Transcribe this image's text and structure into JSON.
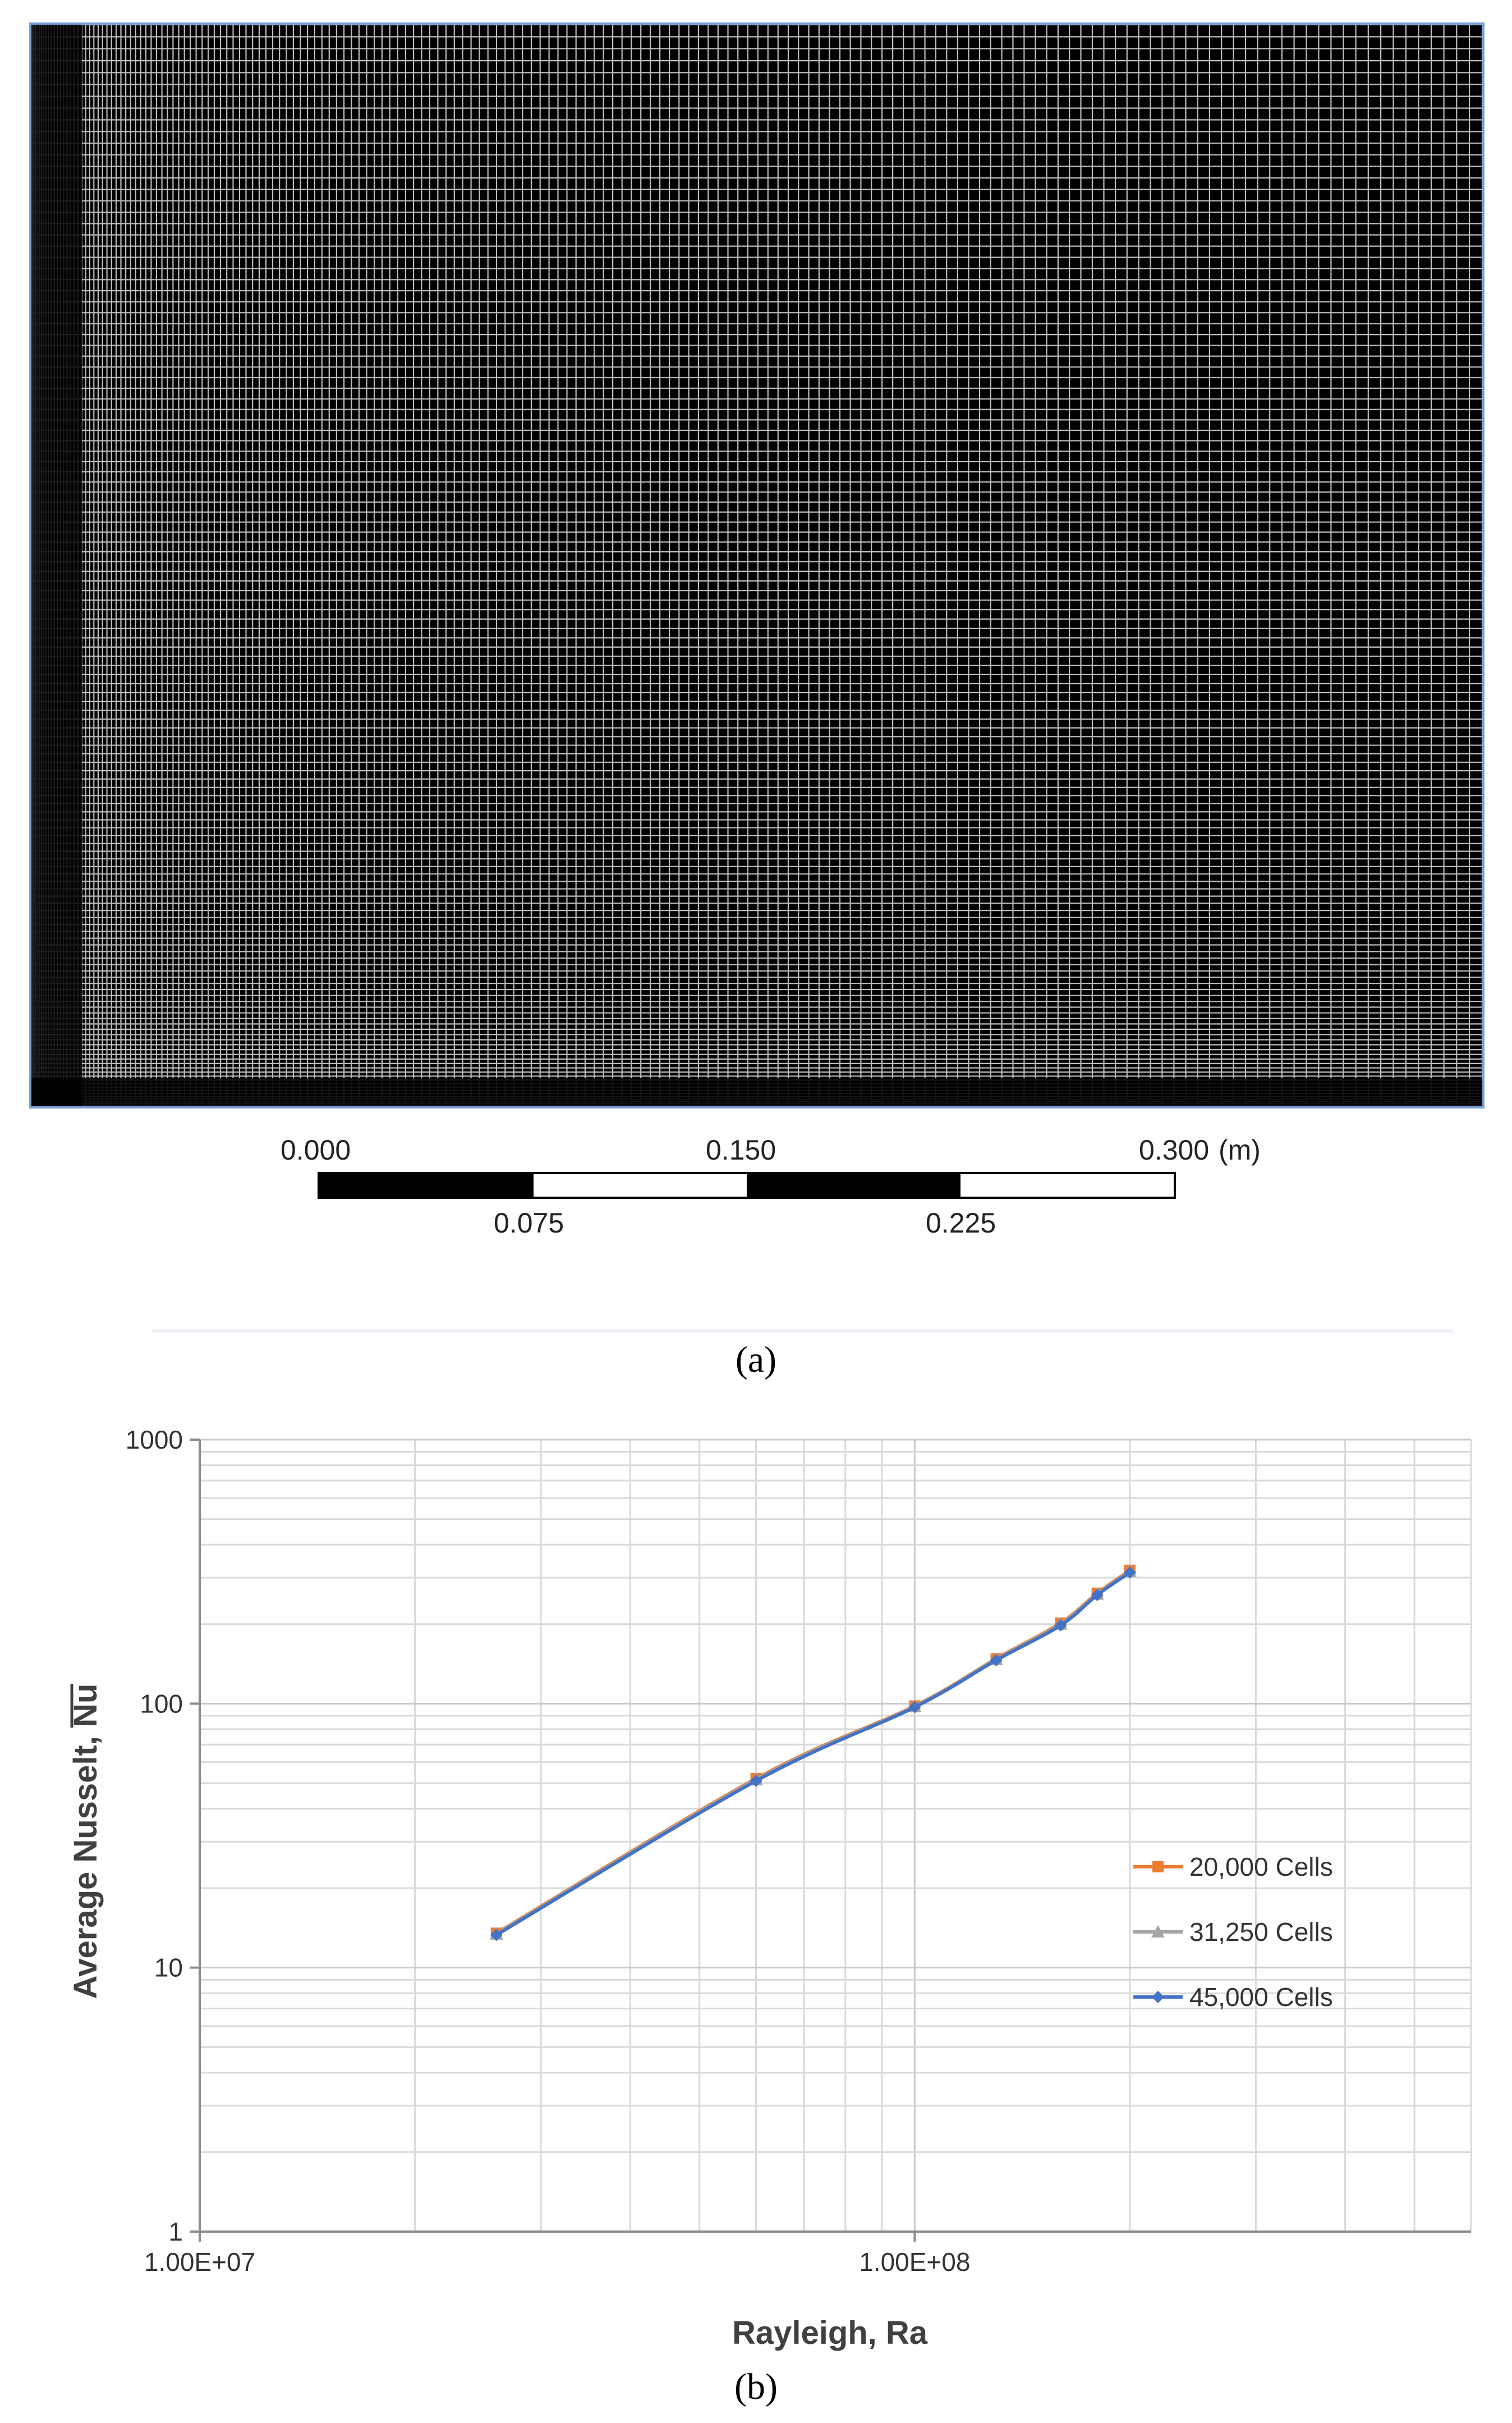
{
  "panel_a": {
    "scale_labels_top": [
      "0.000",
      "0.150",
      "0.300"
    ],
    "scale_unit": "(m)",
    "scale_labels_bottom": [
      "0.075",
      "0.225"
    ],
    "caption": "(a)",
    "frame_color": "#7aa0d8"
  },
  "panel_b": {
    "caption": "(b)"
  },
  "chart_data": {
    "type": "line",
    "xlabel": "Rayleigh, Ra",
    "ylabel": "Average Nusselt, Nu",
    "x_scale": "log",
    "y_scale": "log",
    "xlim": [
      10000000,
      600000000
    ],
    "ylim": [
      1,
      1000
    ],
    "x_tick_labels": [
      "1.00E+07",
      "1.00E+08"
    ],
    "y_tick_labels": [
      "1",
      "10",
      "100",
      "1000"
    ],
    "grid": true,
    "legend_position": "right",
    "series": [
      {
        "name": "20,000 Cells",
        "color": "#ed7d31",
        "marker": "square",
        "x": [
          26000000,
          60000000,
          100000000,
          130000000,
          160000000,
          180000000,
          200000000
        ],
        "y": [
          13.5,
          52,
          98,
          148,
          202,
          262,
          320
        ]
      },
      {
        "name": "31,250 Cells",
        "color": "#a5a5a5",
        "marker": "triangle",
        "x": [
          26000000,
          60000000,
          100000000,
          130000000,
          160000000,
          180000000,
          200000000
        ],
        "y": [
          13.4,
          51.5,
          97.5,
          147,
          200,
          260,
          317
        ]
      },
      {
        "name": "45,000 Cells",
        "color": "#4472c4",
        "marker": "diamond",
        "x": [
          26000000,
          60000000,
          100000000,
          130000000,
          160000000,
          180000000,
          200000000
        ],
        "y": [
          13.3,
          51,
          97,
          146,
          198,
          258,
          314
        ]
      }
    ]
  }
}
